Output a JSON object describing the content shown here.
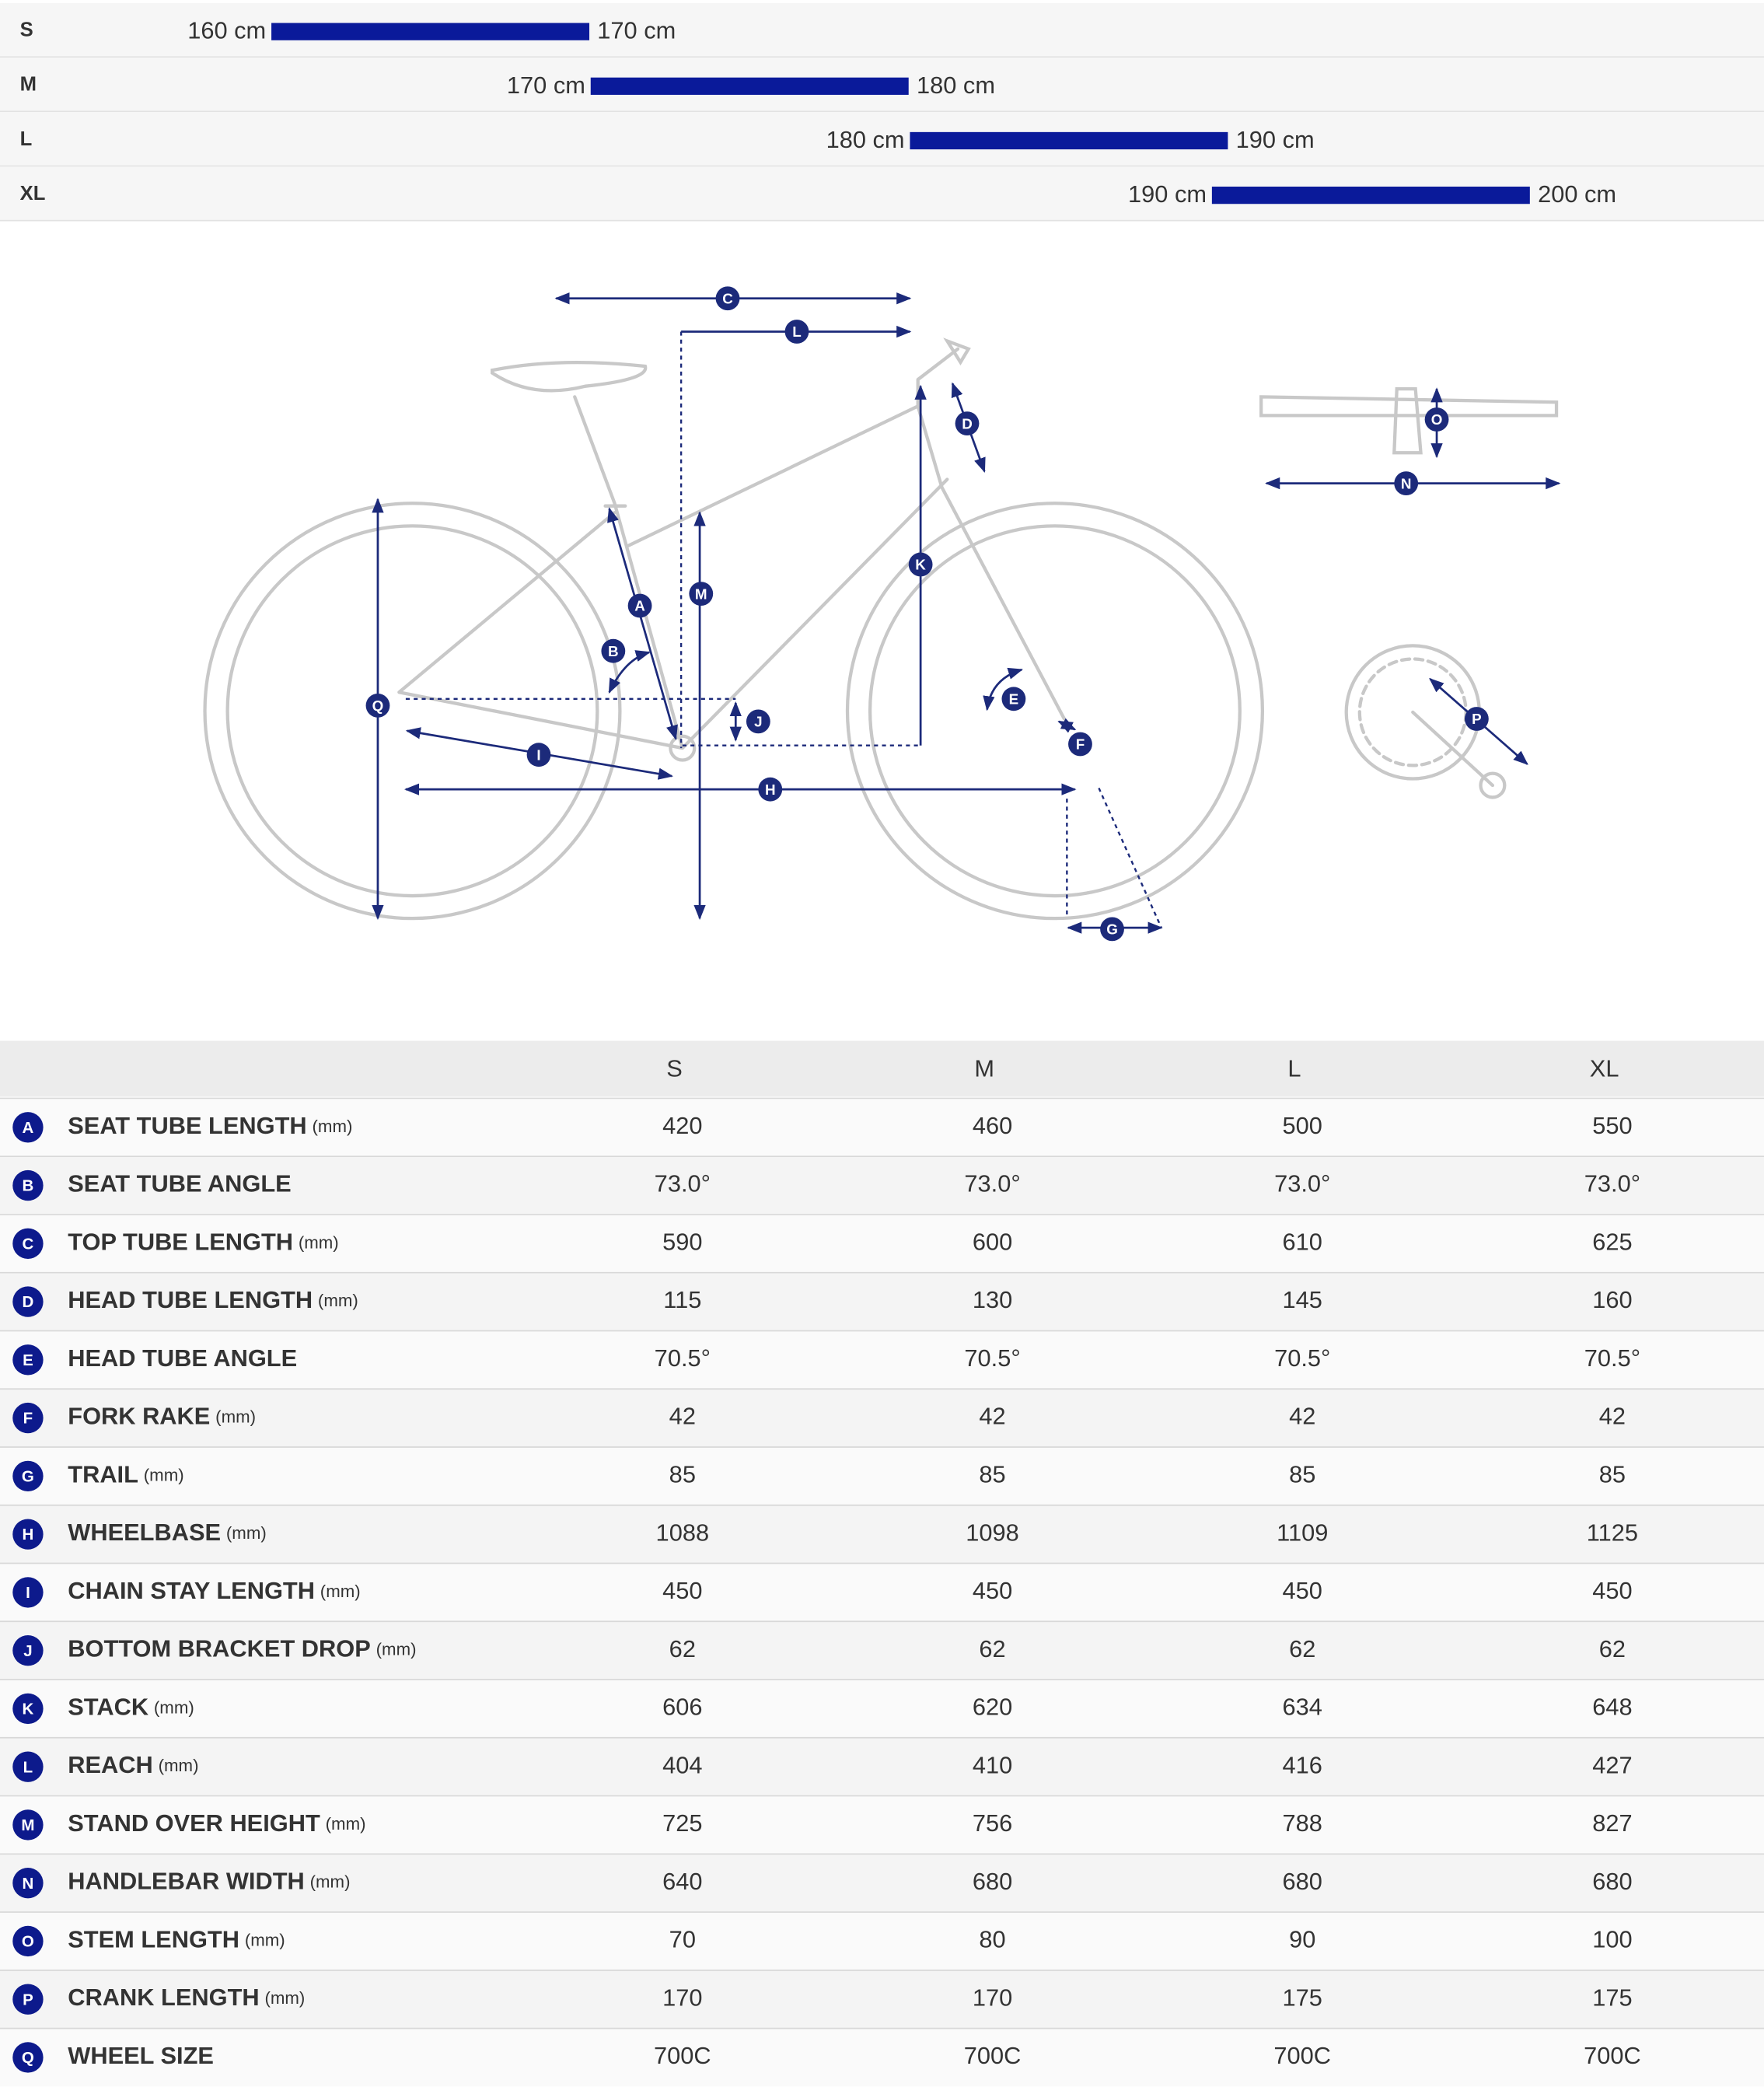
{
  "size_chart": {
    "rows": [
      {
        "size": "S",
        "min": "160 cm",
        "max": "170 cm"
      },
      {
        "size": "M",
        "min": "170 cm",
        "max": "180 cm"
      },
      {
        "size": "L",
        "min": "180 cm",
        "max": "190 cm"
      },
      {
        "size": "XL",
        "min": "190 cm",
        "max": "200 cm"
      }
    ]
  },
  "table": {
    "header": [
      "S",
      "M",
      "L",
      "XL"
    ],
    "rows": [
      {
        "letter": "A",
        "name": "SEAT TUBE LENGTH",
        "unit": "(mm)",
        "values": [
          "420",
          "460",
          "500",
          "550"
        ]
      },
      {
        "letter": "B",
        "name": "SEAT TUBE ANGLE",
        "values": [
          "73.0°",
          "73.0°",
          "73.0°",
          "73.0°"
        ]
      },
      {
        "letter": "C",
        "name": "TOP TUBE LENGTH",
        "unit": "(mm)",
        "values": [
          "590",
          "600",
          "610",
          "625"
        ]
      },
      {
        "letter": "D",
        "name": "HEAD TUBE LENGTH",
        "unit": "(mm)",
        "values": [
          "115",
          "130",
          "145",
          "160"
        ]
      },
      {
        "letter": "E",
        "name": "HEAD TUBE ANGLE",
        "values": [
          "70.5°",
          "70.5°",
          "70.5°",
          "70.5°"
        ]
      },
      {
        "letter": "F",
        "name": "FORK RAKE",
        "unit": "(mm)",
        "values": [
          "42",
          "42",
          "42",
          "42"
        ]
      },
      {
        "letter": "G",
        "name": "TRAIL",
        "unit": "(mm)",
        "values": [
          "85",
          "85",
          "85",
          "85"
        ]
      },
      {
        "letter": "H",
        "name": "WHEELBASE",
        "unit": "(mm)",
        "values": [
          "1088",
          "1098",
          "1109",
          "1125"
        ]
      },
      {
        "letter": "I",
        "name": "CHAIN STAY LENGTH",
        "unit": "(mm)",
        "values": [
          "450",
          "450",
          "450",
          "450"
        ]
      },
      {
        "letter": "J",
        "name": "BOTTOM BRACKET DROP",
        "unit": "(mm)",
        "values": [
          "62",
          "62",
          "62",
          "62"
        ]
      },
      {
        "letter": "K",
        "name": "STACK",
        "unit": "(mm)",
        "values": [
          "606",
          "620",
          "634",
          "648"
        ]
      },
      {
        "letter": "L",
        "name": "REACH",
        "unit": "(mm)",
        "values": [
          "404",
          "410",
          "416",
          "427"
        ]
      },
      {
        "letter": "M",
        "name": "STAND OVER HEIGHT",
        "unit": "(mm)",
        "values": [
          "725",
          "756",
          "788",
          "827"
        ]
      },
      {
        "letter": "N",
        "name": "HANDLEBAR WIDTH",
        "unit": "(mm)",
        "values": [
          "640",
          "680",
          "680",
          "680"
        ]
      },
      {
        "letter": "O",
        "name": "STEM LENGTH",
        "unit": "(mm)",
        "values": [
          "70",
          "80",
          "90",
          "100"
        ]
      },
      {
        "letter": "P",
        "name": "CRANK LENGTH",
        "unit": "(mm)",
        "values": [
          "170",
          "170",
          "175",
          "175"
        ]
      },
      {
        "letter": "Q",
        "name": "WHEEL SIZE",
        "values": [
          "700C",
          "700C",
          "700C",
          "700C"
        ]
      }
    ]
  }
}
